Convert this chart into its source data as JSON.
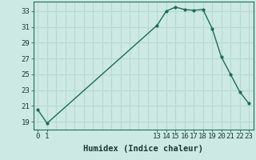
{
  "x": [
    0,
    1,
    13,
    14,
    15,
    16,
    17,
    18,
    19,
    20,
    21,
    22,
    23
  ],
  "y": [
    20.5,
    18.8,
    31.2,
    33.0,
    33.5,
    33.2,
    33.1,
    33.2,
    30.8,
    27.2,
    25.0,
    22.8,
    21.3
  ],
  "title": "",
  "xlabel": "Humidex (Indice chaleur)",
  "ylabel": "",
  "xlim": [
    -0.5,
    23.5
  ],
  "ylim": [
    18.0,
    34.2
  ],
  "yticks": [
    19,
    21,
    23,
    25,
    27,
    29,
    31,
    33
  ],
  "xticks": [
    0,
    1,
    13,
    14,
    15,
    16,
    17,
    18,
    19,
    20,
    21,
    22,
    23
  ],
  "grid_xticks": [
    0,
    1,
    2,
    3,
    4,
    5,
    6,
    7,
    8,
    9,
    10,
    11,
    12,
    13,
    14,
    15,
    16,
    17,
    18,
    19,
    20,
    21,
    22,
    23
  ],
  "bg_color": "#cce9e4",
  "grid_color": "#b8d8d2",
  "line_color": "#1e6b5a",
  "marker_color": "#1e6b5a",
  "font_color": "#1a3a30",
  "xlabel_fontsize": 7.5,
  "tick_fontsize": 6.5
}
